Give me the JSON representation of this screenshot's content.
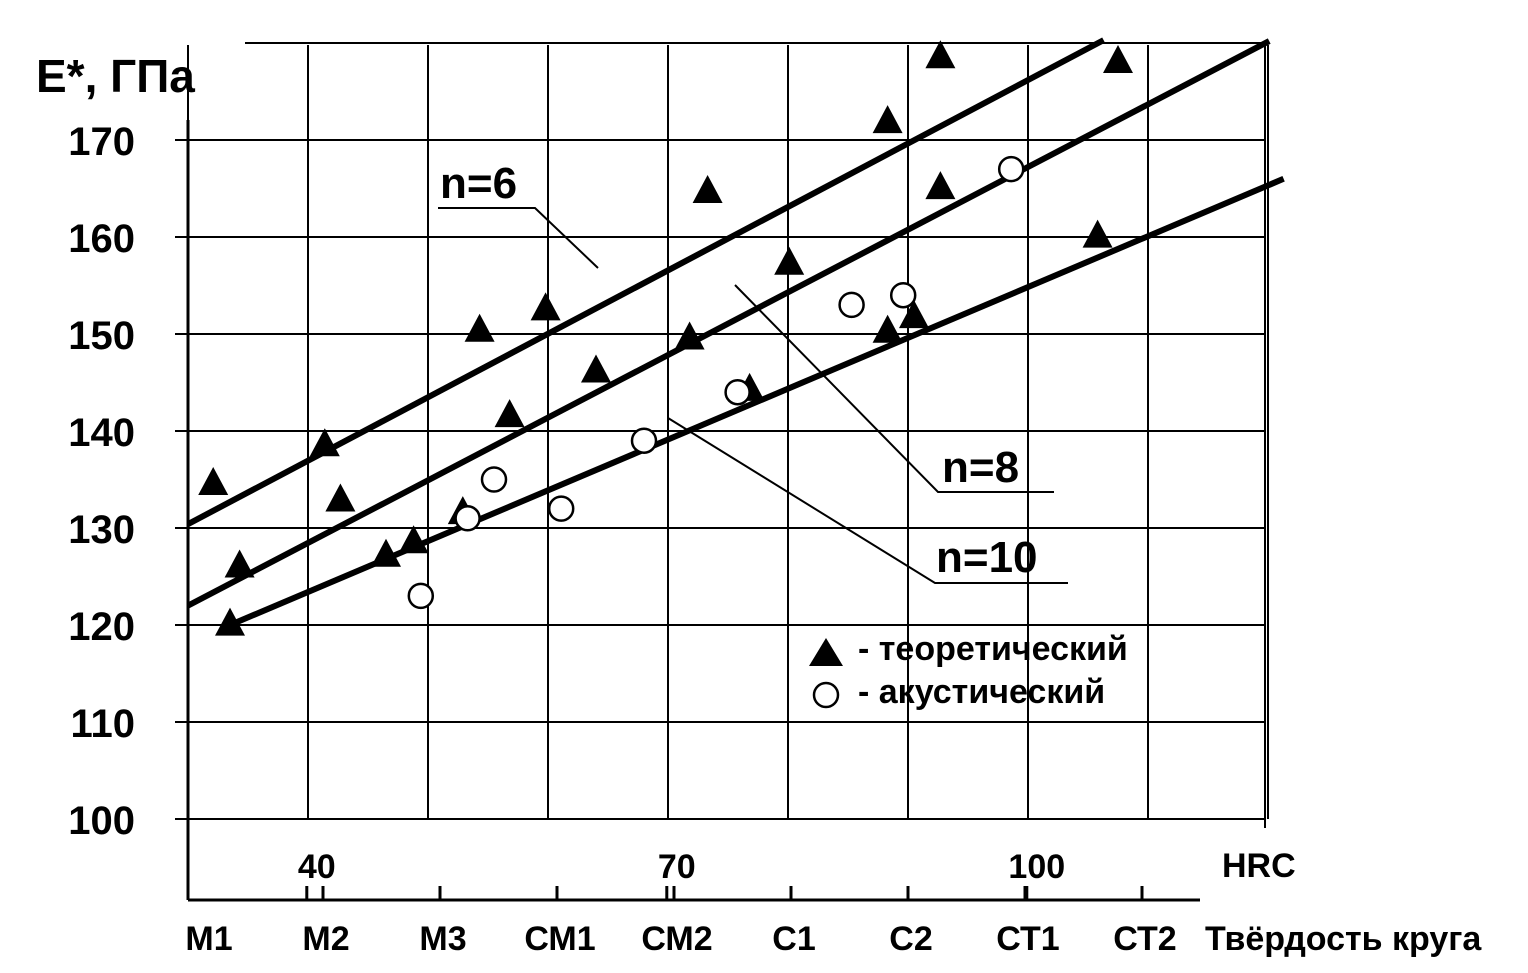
{
  "chart_data": {
    "type": "scatter",
    "ylabel": "E*, ГПа",
    "xlabel_hrc": "HRC",
    "xlabel_hardness": "Твёрдость круга",
    "ylim": [
      100,
      180
    ],
    "yticks": [
      "100",
      "110",
      "120",
      "130",
      "140",
      "150",
      "160",
      "170"
    ],
    "hrc_ticks": [
      {
        "label": "40",
        "hrc": 40
      },
      {
        "label": "70",
        "hrc": 70
      },
      {
        "label": "100",
        "hrc": 100
      }
    ],
    "hardness_ticks": [
      "М1",
      "М2",
      "М3",
      "СМ1",
      "СМ2",
      "С1",
      "С2",
      "СТ1",
      "СТ2"
    ],
    "legend": {
      "position": "lower-right",
      "items": [
        {
          "marker": "triangle",
          "label": "- теоретический"
        },
        {
          "marker": "circle",
          "label": "- акустический"
        }
      ]
    },
    "series": [
      {
        "name": "n=6",
        "fit": [
          [
            29.2,
            130.4
          ],
          [
            105.5,
            180.3
          ]
        ],
        "points": [
          [
            31.3,
            134.5
          ],
          [
            40.6,
            138.5
          ],
          [
            53.5,
            150.3
          ],
          [
            59.0,
            152.5
          ],
          [
            72.5,
            164.6
          ],
          [
            87.5,
            171.8
          ],
          [
            91.9,
            178.5
          ]
        ]
      },
      {
        "name": "n=8",
        "fit": [
          [
            29.2,
            122.0
          ],
          [
            119.3,
            180.2
          ]
        ],
        "points": [
          [
            33.5,
            126.0
          ],
          [
            41.9,
            132.8
          ],
          [
            56.0,
            141.5
          ],
          [
            63.2,
            146.1
          ],
          [
            71.0,
            149.5
          ],
          [
            79.3,
            157.2
          ],
          [
            91.9,
            165.0
          ],
          [
            106.7,
            178.0
          ]
        ]
      },
      {
        "name": "n=10",
        "fit": [
          [
            32.7,
            120.0
          ],
          [
            120.5,
            166.0
          ]
        ],
        "points": [
          [
            32.7,
            120.0
          ],
          [
            45.7,
            127.1
          ],
          [
            48.0,
            128.5
          ],
          [
            52.1,
            131.5
          ],
          [
            76.0,
            144.2
          ],
          [
            87.5,
            150.2
          ],
          [
            89.7,
            151.7
          ],
          [
            105.0,
            160.0
          ]
        ]
      },
      {
        "name": "акустический",
        "points": [
          [
            48.6,
            123.0
          ],
          [
            52.5,
            131.0
          ],
          [
            54.7,
            135.0
          ],
          [
            60.3,
            132.0
          ],
          [
            67.2,
            139.0
          ],
          [
            75.0,
            144.0
          ],
          [
            84.5,
            153.0
          ],
          [
            88.8,
            154.0
          ],
          [
            97.8,
            167.0
          ]
        ]
      }
    ]
  }
}
